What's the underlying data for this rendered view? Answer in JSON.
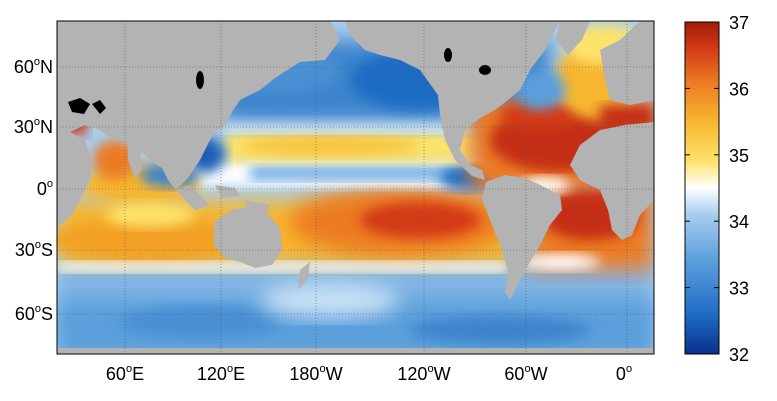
{
  "map": {
    "projection": "equirectangular",
    "central_meridian": "150°W",
    "land_color": "#b3b3b3",
    "lake_color": "#000000",
    "gridlines": "dotted",
    "lon_ticks": [
      {
        "value": 60,
        "label": "60",
        "hemi": "E"
      },
      {
        "value": 120,
        "label": "120",
        "hemi": "E"
      },
      {
        "value": 180,
        "label": "180",
        "hemi": "W"
      },
      {
        "value": 240,
        "label": "120",
        "hemi": "W"
      },
      {
        "value": 300,
        "label": "60",
        "hemi": "W"
      },
      {
        "value": 360,
        "label": "0",
        "hemi": ""
      }
    ],
    "lat_ticks": [
      {
        "value": 60,
        "label": "60",
        "hemi": "N"
      },
      {
        "value": 30,
        "label": "30",
        "hemi": "N"
      },
      {
        "value": 0,
        "label": "0",
        "hemi": ""
      },
      {
        "value": -30,
        "label": "30",
        "hemi": "S"
      },
      {
        "value": -60,
        "label": "60",
        "hemi": "S"
      }
    ]
  },
  "colorbar": {
    "min": 32,
    "max": 37,
    "ticks": [
      {
        "value": 37,
        "label": "37"
      },
      {
        "value": 36,
        "label": "36"
      },
      {
        "value": 35,
        "label": "35"
      },
      {
        "value": 34,
        "label": "34"
      },
      {
        "value": 33,
        "label": "33"
      },
      {
        "value": 32,
        "label": "32"
      }
    ],
    "colors": [
      "#08308c",
      "#1f6cc4",
      "#5a9fdc",
      "#a8cdee",
      "#ffffff",
      "#fde36a",
      "#f6b62e",
      "#ec7a22",
      "#d33a18",
      "#a31a08"
    ]
  }
}
